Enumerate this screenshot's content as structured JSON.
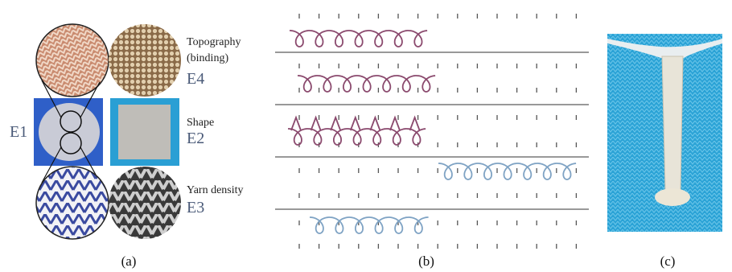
{
  "panel_a": {
    "topography": {
      "lines": [
        "Topography",
        "(binding)"
      ],
      "code": "E4"
    },
    "e1": "E1",
    "shape": {
      "label": "Shape",
      "code": "E2"
    },
    "yarn_density": {
      "label": "Yarn density",
      "code": "E3"
    },
    "caption": "(a)"
  },
  "panel_b": {
    "caption": "(b)"
  },
  "panel_c": {
    "caption": "(c)"
  }
}
